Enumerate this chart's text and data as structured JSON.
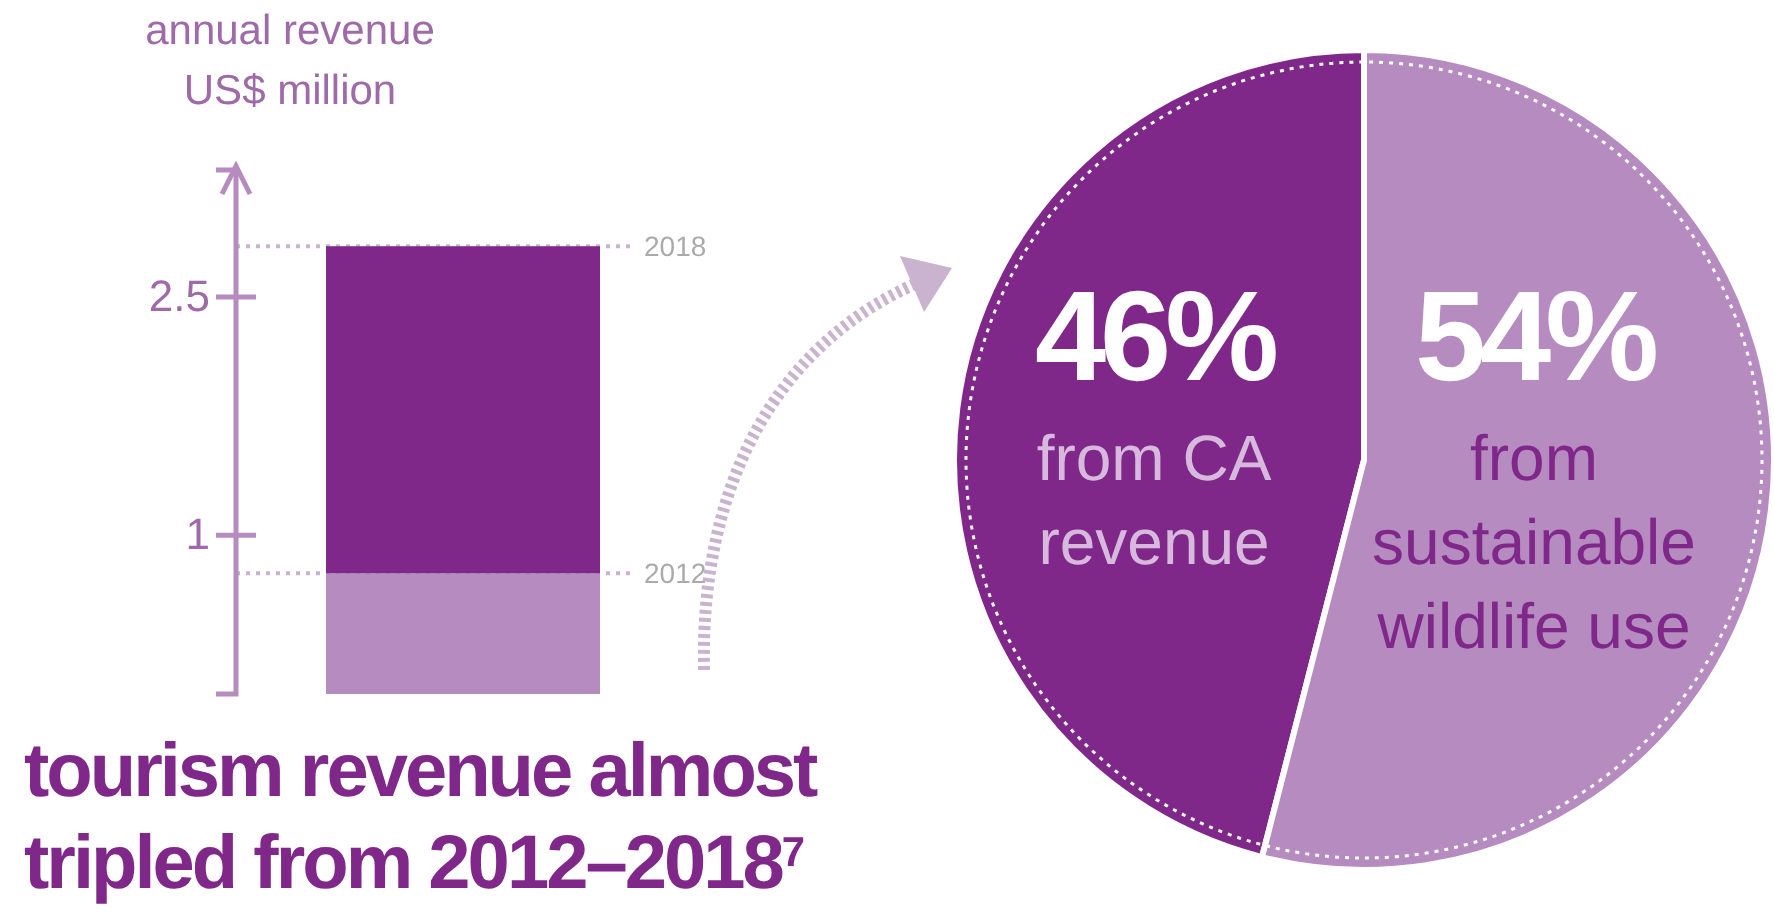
{
  "chart_data": [
    {
      "type": "bar",
      "title": "tourism revenue almost tripled from 2012–2018$^{7}$",
      "ylabel": "annual revenue US$ million",
      "categories": [
        null
      ],
      "stacked": true,
      "series": [
        {
          "color": "#b58bc0",
          "values": [
            0.76
          ]
        },
        {
          "color": "#80288a",
          "values": [
            2.06
          ]
        }
      ],
      "ylim": [
        0,
        3.3
      ],
      "yticks": [
        1,
        2.5
      ],
      "tick_labels": "y",
      "ref_lines": [
        {
          "axis": "y",
          "value": 2.82,
          "color": "#c9b3cf",
          "line_style": "dotted"
        },
        {
          "axis": "y",
          "value": 0.76,
          "color": "#c9b3cf",
          "line_style": "dotted"
        }
      ],
      "annotations": [
        "2018",
        "2012"
      ]
    },
    {
      "type": "pie",
      "categories": [
        "from CA revenue",
        "from sustainable wildlife use"
      ],
      "values": [
        46,
        54
      ],
      "colors": [
        "#80288a",
        "#b58bc0"
      ],
      "value_labels": [
        "46%",
        "54%"
      ]
    }
  ]
}
